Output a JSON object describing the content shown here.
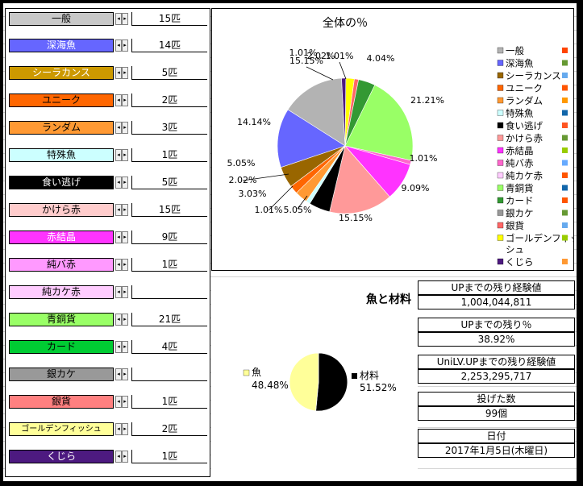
{
  "fish_list": [
    {
      "name": "一般",
      "count": "15匹",
      "color": "#c8c8c8",
      "text": "#000000"
    },
    {
      "name": "深海魚",
      "count": "14匹",
      "color": "#6666ff",
      "text": "#ffffff"
    },
    {
      "name": "シーラカンス",
      "count": "5匹",
      "color": "#cc9900",
      "text": "#ffffff"
    },
    {
      "name": "ユニーク",
      "count": "2匹",
      "color": "#ff6600",
      "text": "#000000"
    },
    {
      "name": "ランダム",
      "count": "3匹",
      "color": "#ff9933",
      "text": "#000000"
    },
    {
      "name": "特殊魚",
      "count": "1匹",
      "color": "#ccffff",
      "text": "#000000"
    },
    {
      "name": "食い逃げ",
      "count": "5匹",
      "color": "#000000",
      "text": "#ffffff"
    },
    {
      "name": "かけら赤",
      "count": "15匹",
      "color": "#ffcccc",
      "text": "#000000"
    },
    {
      "name": "赤結晶",
      "count": "9匹",
      "color": "#ff33ff",
      "text": "#ffffff"
    },
    {
      "name": "純バ赤",
      "count": "1匹",
      "color": "#ff99ff",
      "text": "#000000"
    },
    {
      "name": "純カケ赤",
      "count": "",
      "color": "#ffccff",
      "text": "#000000"
    },
    {
      "name": "青銅貨",
      "count": "21匹",
      "color": "#99ff66",
      "text": "#000000"
    },
    {
      "name": "カード",
      "count": "4匹",
      "color": "#00cc33",
      "text": "#000000"
    },
    {
      "name": "銀カケ",
      "count": "",
      "color": "#999999",
      "text": "#000000"
    },
    {
      "name": "銀貨",
      "count": "1匹",
      "color": "#ff8080",
      "text": "#000000"
    },
    {
      "name": "ゴールデンフィッシュ",
      "count": "2匹",
      "color": "#ffff99",
      "text": "#000000"
    },
    {
      "name": "くじら",
      "count": "1匹",
      "color": "#4d1a80",
      "text": "#ffffff"
    }
  ],
  "chart_data": [
    {
      "type": "pie",
      "title": "全体の％",
      "legend_placement": "right",
      "categories": [
        "一般",
        "深海魚",
        "シーラカンス",
        "ユニーク",
        "ランダム",
        "特殊魚",
        "食い逃げ",
        "かけら赤",
        "赤結晶",
        "純バ赤",
        "純カケ赤",
        "青銅貨",
        "カード",
        "銀カケ",
        "銀貨",
        "ゴールデンフィッシュ",
        "くじら"
      ],
      "values": [
        15.15,
        14.14,
        5.05,
        2.02,
        3.03,
        1.01,
        5.05,
        15.15,
        9.09,
        1.01,
        0,
        21.21,
        4.04,
        0,
        1.01,
        2.02,
        1.01
      ],
      "data_labels": [
        "15.15%",
        "14.14%",
        "5.05%",
        "2.02%",
        "3.03%",
        "1.01%",
        "5.05%",
        "15.15%",
        "9.09%",
        "1.01%",
        "",
        "21.21%",
        "4.04%",
        "",
        "1.01%",
        "2.02%",
        "1.01%"
      ],
      "colors": [
        "#b3b3b3",
        "#6666ff",
        "#996600",
        "#ff6600",
        "#ff9933",
        "#ccffff",
        "#000000",
        "#ff9999",
        "#ff33ff",
        "#ff66cc",
        "#ffccff",
        "#99ff66",
        "#339933",
        "#999999",
        "#ff6666",
        "#ffff00",
        "#4d1a80"
      ],
      "legend_labels": [
        "一般",
        "深海魚",
        "シーラカンス",
        "ユニーク",
        "ランダム",
        "特殊魚",
        "食い逃げ",
        "かけら赤",
        "赤結晶",
        "純バ赤",
        "純カケ赤",
        "青銅貨",
        "カード",
        "銀カケ",
        "銀貨",
        "ゴールデンフィッ\nシュ",
        "くじら"
      ],
      "legend_markers": [
        "#ff4400",
        "#669933",
        "#66aaee",
        "#ff5500",
        "#ff9900",
        "#1166aa",
        "#ff5522",
        "#669933",
        "#99cc00",
        "#66aaff",
        "#ff5500",
        "#1166aa",
        "#ff5500",
        "#669933",
        "#66aaee",
        "#99cc00",
        "#ff9933"
      ]
    },
    {
      "type": "pie",
      "title": "魚と材料",
      "legend_placement": "left-right",
      "categories": [
        "魚",
        "材料"
      ],
      "values": [
        48.48,
        51.52
      ],
      "data_labels": [
        "48.48%",
        "51.52%"
      ],
      "colors": [
        "#ffff99",
        "#000000"
      ]
    }
  ],
  "stats": [
    {
      "label": "UPまでの残り経験値",
      "value": "1,004,044,811"
    },
    {
      "label": "UPまでの残り％",
      "value": "38.92%"
    },
    {
      "label": "UniLV.UPまでの残り経験値",
      "value": "2,253,295,717"
    },
    {
      "label": "投げた数",
      "value": "99個"
    },
    {
      "label": "日付",
      "value": "2017年1月5日(木曜日)"
    }
  ]
}
